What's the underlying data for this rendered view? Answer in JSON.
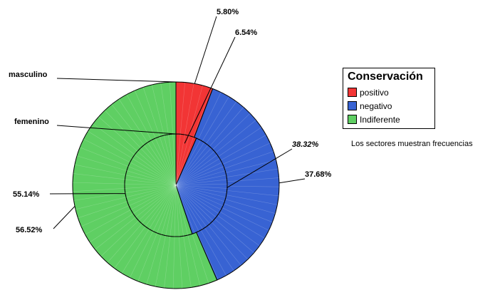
{
  "chart_data": {
    "type": "pie",
    "subtype": "nested-donut",
    "legend": {
      "title": "Conservación",
      "placement": "right",
      "items": [
        {
          "label": "positivo",
          "color": "#f23535"
        },
        {
          "label": "negativo",
          "color": "#3863d3"
        },
        {
          "label": "Indiferente",
          "color": "#5fcf63"
        }
      ]
    },
    "rings": [
      {
        "name": "masculino",
        "ring": "outer",
        "values": [
          5.8,
          37.68,
          56.52
        ],
        "labels": [
          "5.80%",
          "37.68%",
          "56.52%"
        ]
      },
      {
        "name": "femenino",
        "ring": "inner",
        "values": [
          6.54,
          38.32,
          55.14
        ],
        "labels": [
          "6.54%",
          "38.32%",
          "55.14%"
        ]
      }
    ],
    "note": "Los sectores muestran frecuencias"
  }
}
